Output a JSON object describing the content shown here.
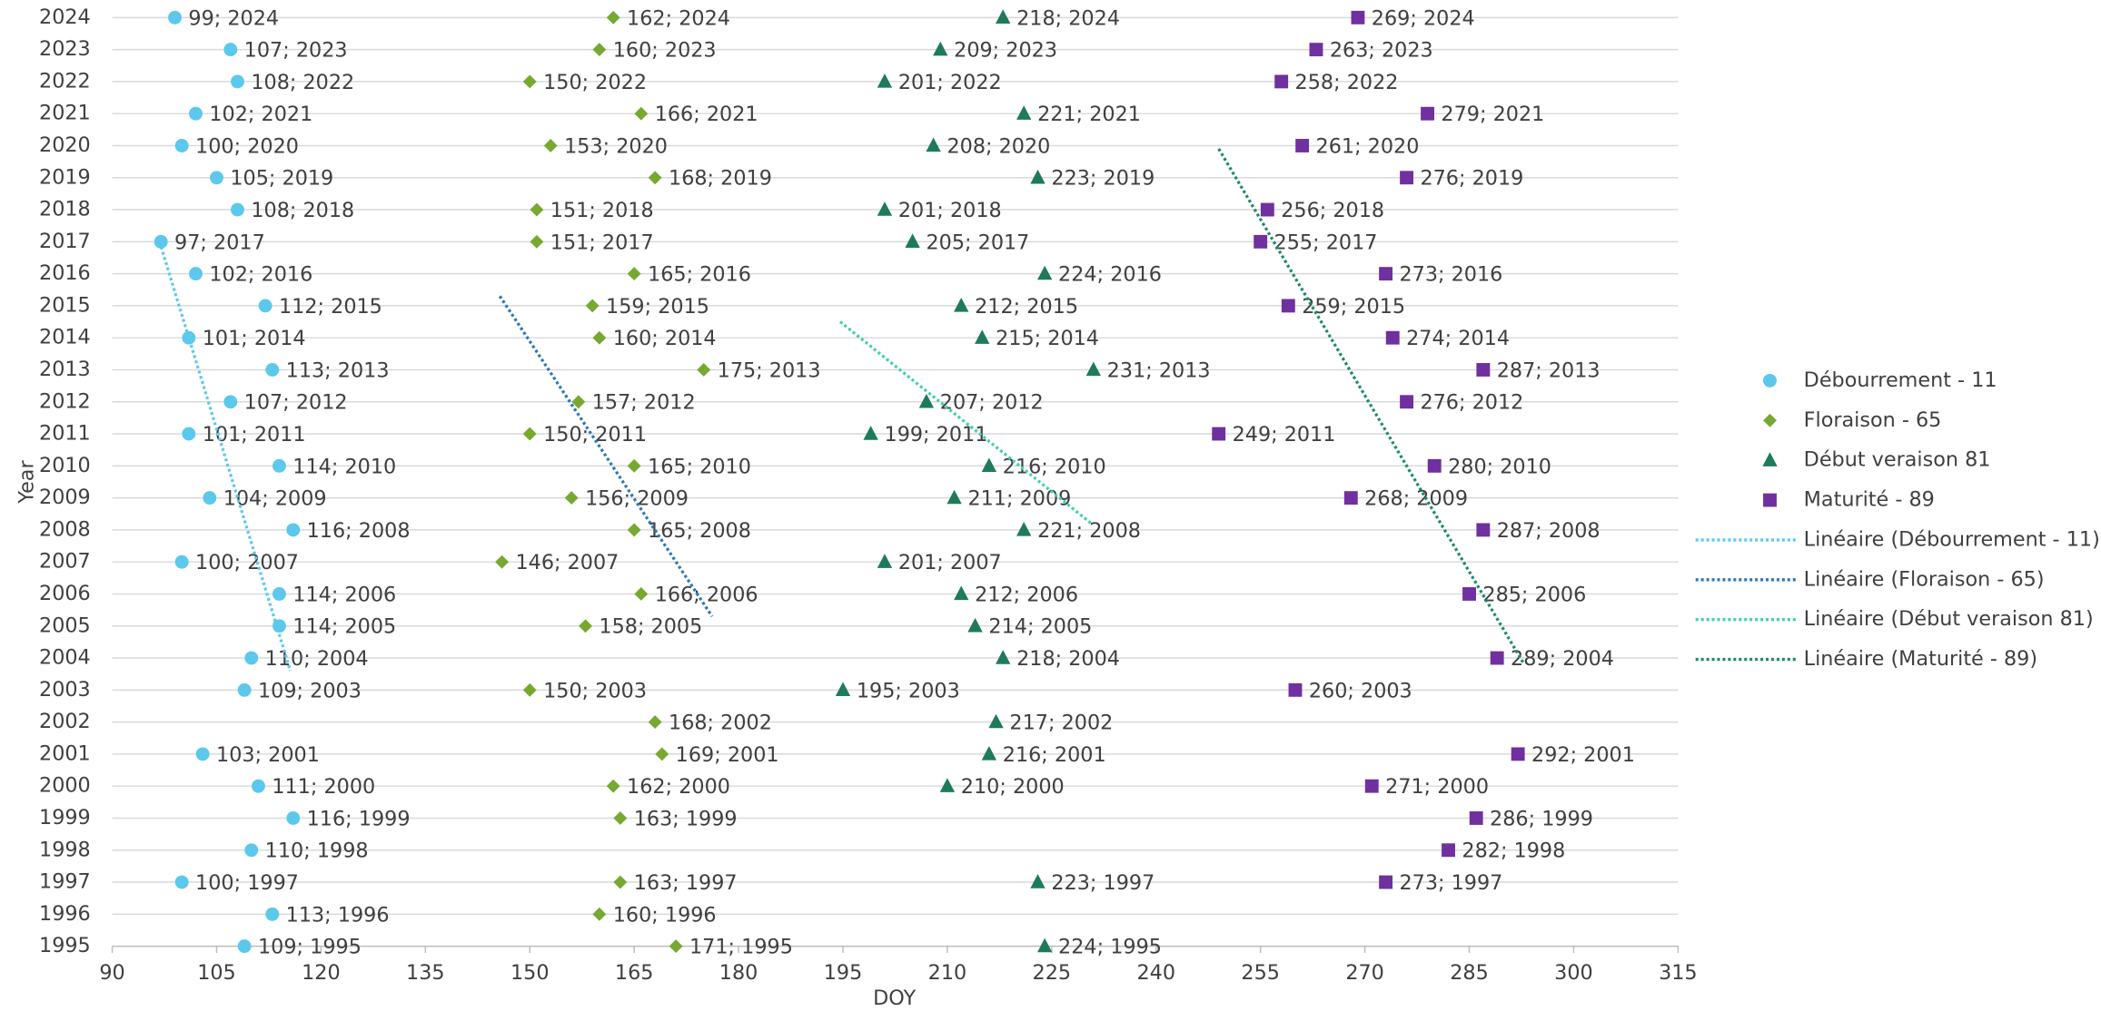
{
  "chart_data": {
    "type": "scatter",
    "x_label": "DOY",
    "y_label": "Year",
    "xlim": [
      90,
      315
    ],
    "xticks": [
      90,
      105,
      120,
      135,
      150,
      165,
      180,
      195,
      210,
      225,
      240,
      255,
      270,
      285,
      300,
      315
    ],
    "ylim": [
      1995,
      2024
    ],
    "yticks": [
      1995,
      1996,
      1997,
      1998,
      1999,
      2000,
      2001,
      2002,
      2003,
      2004,
      2005,
      2006,
      2007,
      2008,
      2009,
      2010,
      2011,
      2012,
      2013,
      2014,
      2015,
      2016,
      2017,
      2018,
      2019,
      2020,
      2021,
      2022,
      2023,
      2024
    ],
    "grid": true,
    "legend": "right",
    "series": [
      {
        "name": "Débourrement - 11",
        "color": "#5bc8ec",
        "marker": "circle",
        "x": [
          99,
          107,
          108,
          102,
          100,
          105,
          108,
          97,
          102,
          112,
          101,
          113,
          107,
          101,
          114,
          104,
          116,
          100,
          114,
          114,
          110,
          109,
          103,
          111,
          116,
          110,
          100,
          113,
          109
        ],
        "values": [
          2024,
          2023,
          2022,
          2021,
          2020,
          2019,
          2018,
          2017,
          2016,
          2015,
          2014,
          2013,
          2012,
          2011,
          2010,
          2009,
          2008,
          2007,
          2006,
          2005,
          2004,
          2003,
          2001,
          2000,
          1999,
          1998,
          1997,
          1996,
          1995
        ],
        "value_labels": [
          "99; 2024",
          "107; 2023",
          "108; 2022",
          "102; 2021",
          "100; 2020",
          "105; 2019",
          "108; 2018",
          "97; 2017",
          "102; 2016",
          "112; 2015",
          "101; 2014",
          "113; 2013",
          "107; 2012",
          "101; 2011",
          "114; 2010",
          "104; 2009",
          "116; 2008",
          "100; 2007",
          "114; 2006",
          "114; 2005",
          "110; 2004",
          "109; 2003",
          "103; 2001",
          "111; 2000",
          "116; 1999",
          "110; 1998",
          "100; 1997",
          "113; 1996",
          "109; 1995"
        ]
      },
      {
        "name": "Floraison - 65",
        "color": "#77a832",
        "marker": "diamond",
        "x": [
          162,
          160,
          150,
          166,
          153,
          168,
          151,
          151,
          165,
          159,
          160,
          175,
          157,
          150,
          165,
          156,
          165,
          146,
          166,
          158,
          150,
          168,
          169,
          162,
          163,
          163,
          160,
          171
        ],
        "values": [
          2024,
          2023,
          2022,
          2021,
          2020,
          2019,
          2018,
          2017,
          2016,
          2015,
          2014,
          2013,
          2012,
          2011,
          2010,
          2009,
          2008,
          2007,
          2006,
          2005,
          2003,
          2002,
          2001,
          2000,
          1999,
          1997,
          1996,
          1995
        ],
        "value_labels": [
          "162; 2024",
          "160; 2023",
          "150; 2022",
          "166; 2021",
          "153; 2020",
          "168; 2019",
          "151; 2018",
          "151; 2017",
          "165; 2016",
          "159; 2015",
          "160; 2014",
          "175; 2013",
          "157; 2012",
          "150; 2011",
          "165; 2010",
          "156; 2009",
          "165; 2008",
          "146; 2007",
          "166; 2006",
          "158; 2005",
          "150; 2003",
          "168; 2002",
          "169; 2001",
          "162; 2000",
          "163; 1999",
          "163; 1997",
          "160; 1996",
          "171; 1995"
        ]
      },
      {
        "name": "Début veraison 81",
        "color": "#1e7b5a",
        "marker": "triangle",
        "x": [
          218,
          209,
          201,
          221,
          208,
          223,
          201,
          205,
          224,
          212,
          215,
          231,
          207,
          199,
          216,
          211,
          221,
          201,
          212,
          214,
          218,
          195,
          217,
          216,
          210,
          223,
          224
        ],
        "values": [
          2024,
          2023,
          2022,
          2021,
          2020,
          2019,
          2018,
          2017,
          2016,
          2015,
          2014,
          2013,
          2012,
          2011,
          2010,
          2009,
          2008,
          2007,
          2006,
          2005,
          2004,
          2003,
          2002,
          2001,
          2000,
          1997,
          1995
        ],
        "value_labels": [
          "218; 2024",
          "209; 2023",
          "201; 2022",
          "221; 2021",
          "208; 2020",
          "223; 2019",
          "201; 2018",
          "205; 2017",
          "224; 2016",
          "212; 2015",
          "215; 2014",
          "231; 2013",
          "207; 2012",
          "199; 2011",
          "216; 2010",
          "211; 2009",
          "221; 2008",
          "201; 2007",
          "212; 2006",
          "214; 2005",
          "218; 2004",
          "195; 2003",
          "217; 2002",
          "216; 2001",
          "210; 2000",
          "223; 1997",
          "224; 1995"
        ]
      },
      {
        "name": "Maturité - 89",
        "color": "#7030a0",
        "marker": "square",
        "x": [
          269,
          263,
          258,
          279,
          261,
          276,
          256,
          255,
          273,
          259,
          274,
          287,
          276,
          249,
          280,
          268,
          287,
          285,
          289,
          260,
          292,
          271,
          286,
          282,
          273
        ],
        "values": [
          2024,
          2023,
          2022,
          2021,
          2020,
          2019,
          2018,
          2017,
          2016,
          2015,
          2014,
          2013,
          2012,
          2011,
          2010,
          2009,
          2008,
          2006,
          2004,
          2003,
          2001,
          2000,
          1999,
          1998,
          1997
        ],
        "value_labels": [
          "269; 2024",
          "263; 2023",
          "258; 2022",
          "279; 2021",
          "261; 2020",
          "276; 2019",
          "256; 2018",
          "255; 2017",
          "273; 2016",
          "259; 2015",
          "274; 2014",
          "287; 2013",
          "276; 2012",
          "249; 2011",
          "280; 2010",
          "268; 2009",
          "287; 2008",
          "285; 2006",
          "289; 2004",
          "260; 2003",
          "292; 2001",
          "271; 2000",
          "286; 1999",
          "282; 1998",
          "273; 1997"
        ]
      },
      {
        "name": "Linéaire (Débourrement - 11)",
        "color": "#5bc8ec",
        "line": "dotted",
        "x": [
          96.8,
          115.6
        ],
        "values": [
          2017,
          2003.6
        ]
      },
      {
        "name": "Linéaire (Floraison - 65)",
        "color": "#2e75b6",
        "line": "dotted",
        "x": [
          145.7,
          176.2
        ],
        "values": [
          2015.3,
          2005.3
        ]
      },
      {
        "name": "Linéaire (Début veraison 81)",
        "color": "#40d0b0",
        "line": "dotted",
        "x": [
          194.6,
          230.7
        ],
        "values": [
          2014.5,
          2008.2
        ]
      },
      {
        "name": "Linéaire (Maturité - 89)",
        "color": "#1a8a6a",
        "line": "dotted",
        "x": [
          249,
          292.9
        ],
        "values": [
          2019.9,
          2003.8
        ]
      }
    ]
  }
}
